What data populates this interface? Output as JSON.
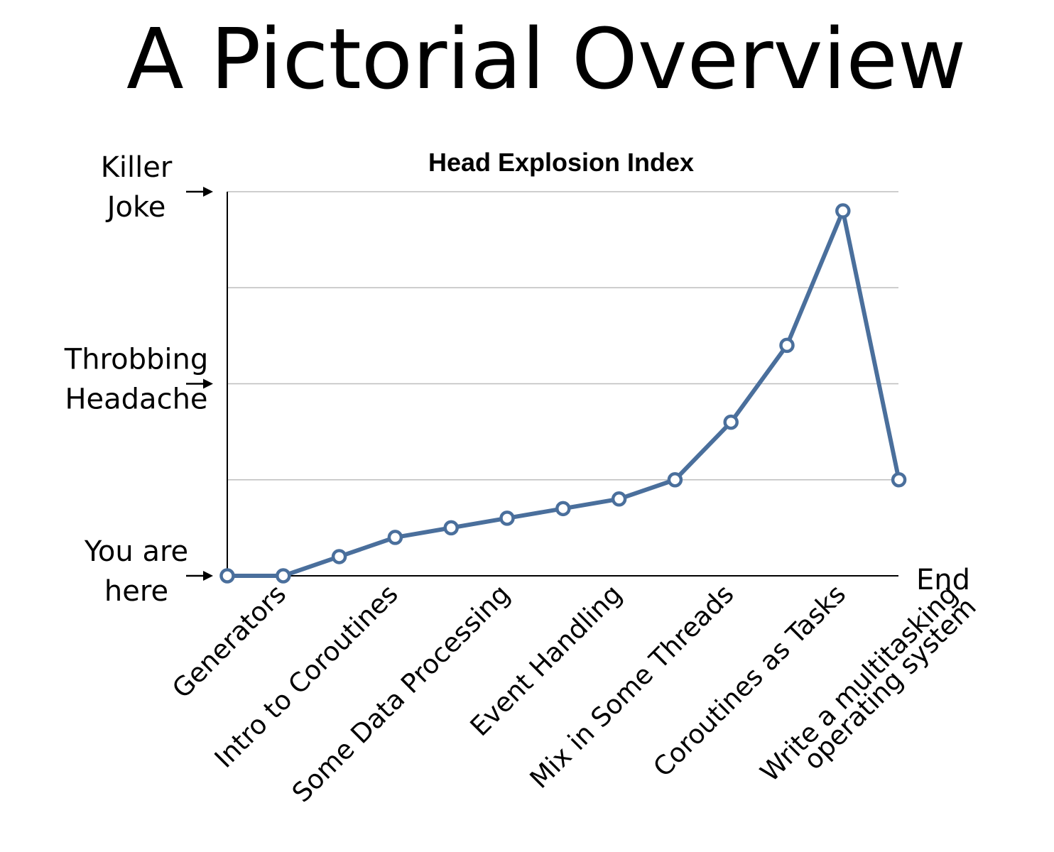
{
  "slide": {
    "title": "A Pictorial Overview"
  },
  "colors": {
    "line": "#4a6f9c",
    "grid": "#bdbdbd",
    "axis": "#000000",
    "text": "#000000"
  },
  "y_annotations": [
    {
      "lines": [
        "Killer",
        "Joke"
      ],
      "value": 4
    },
    {
      "lines": [
        "Throbbing",
        "Headache"
      ],
      "value": 2
    },
    {
      "lines": [
        "You are",
        "here"
      ],
      "value": 0
    }
  ],
  "end_label": "End",
  "chart_data": {
    "type": "line",
    "title": "Head Explosion Index",
    "xlabel": "",
    "ylabel": "",
    "ylim": [
      0,
      4
    ],
    "grid": true,
    "categories": [
      "Generators",
      "Intro to Coroutines",
      "Some Data Processing",
      "Event Handling",
      "Mix in Some Threads",
      "Coroutines as Tasks",
      "Write a multitasking operating system"
    ],
    "x": [
      0,
      1,
      2,
      3,
      4,
      5,
      6,
      7,
      8,
      9,
      10,
      11,
      12
    ],
    "values": [
      0,
      0,
      0.2,
      0.4,
      0.5,
      0.6,
      0.7,
      0.8,
      1.0,
      1.6,
      2.4,
      3.8,
      1.0
    ]
  }
}
